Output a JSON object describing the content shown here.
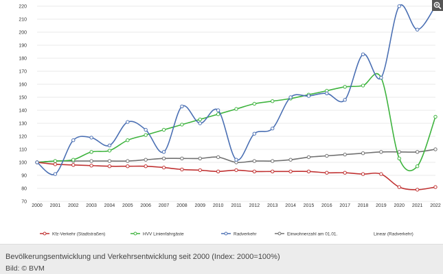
{
  "chart_data": {
    "type": "line",
    "title": "",
    "xlabel": "",
    "ylabel": "",
    "categories": [
      "2000",
      "2001",
      "2002",
      "2003",
      "2004",
      "2005",
      "2006",
      "2007",
      "2008",
      "2009",
      "2010",
      "2011",
      "2012",
      "2013",
      "2014",
      "2015",
      "2016",
      "2017",
      "2018",
      "2019",
      "2020",
      "2021",
      "2022"
    ],
    "ylim": [
      70,
      220
    ],
    "yticks": [
      "220",
      "210",
      "200",
      "190",
      "180",
      "170",
      "160",
      "150",
      "140",
      "130",
      "120",
      "110",
      "100",
      "90",
      "80",
      "70"
    ],
    "grid": "horizontal",
    "legend_position": "bottom",
    "series": [
      {
        "name": "Kfz-Verkehr (Stadtstraßen)",
        "color": "#c03030",
        "values": [
          100,
          98.5,
          98,
          97.5,
          97,
          97,
          97,
          96,
          94.5,
          94,
          93,
          94,
          93,
          93,
          93,
          93,
          92,
          92,
          91,
          91,
          81,
          79,
          81
        ]
      },
      {
        "name": "HVV Linienfahrgäste",
        "color": "#3db33d",
        "values": [
          100,
          101,
          102,
          108,
          109,
          117,
          121,
          125,
          129,
          133,
          137,
          141,
          145,
          147,
          149,
          152,
          155,
          158,
          159,
          165,
          103,
          97,
          135
        ]
      },
      {
        "name": "Radverkehr",
        "color": "#4a6fb3",
        "values": [
          100,
          91,
          117,
          119,
          113,
          131,
          125,
          108,
          143,
          130,
          140,
          102,
          122,
          126,
          150,
          151,
          153,
          148,
          183,
          165,
          220,
          202,
          220
        ]
      },
      {
        "name": "Einwohnerzahl am 01.01.",
        "color": "#707070",
        "values": [
          100,
          101,
          101,
          101,
          101,
          101,
          102,
          103,
          103,
          103,
          104,
          100,
          101,
          101,
          102,
          104,
          105,
          106,
          107,
          108,
          108,
          108,
          110
        ]
      }
    ],
    "extra_legend": [
      {
        "name": "Linear (Radverkehr)"
      }
    ]
  },
  "caption": "Bevölkerungsentwicklung und Verkehrsentwicklung seit 2000 (Index: 2000=100%)",
  "credit": "Bild: © BVM",
  "icons": {
    "zoom": "zoom-in-icon"
  }
}
